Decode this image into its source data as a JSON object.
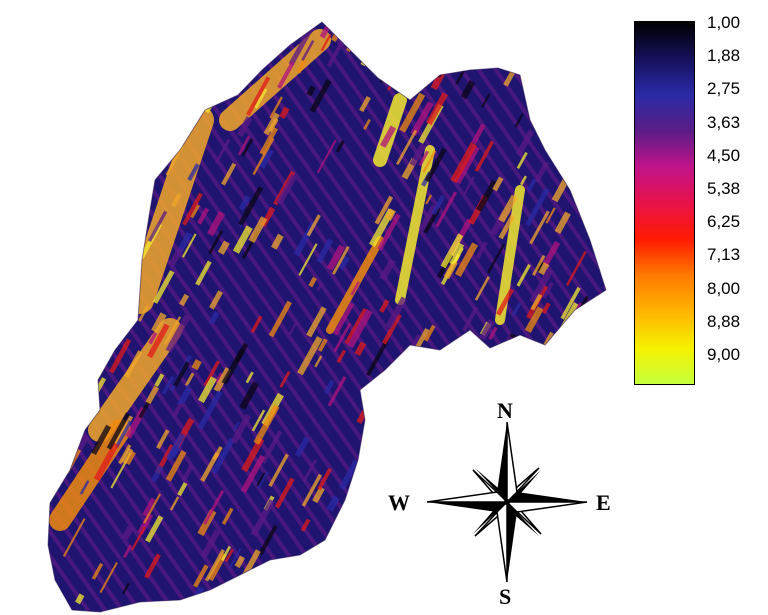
{
  "map": {
    "colors": {
      "dark": "#0b0616",
      "navy": "#1f1470",
      "blue": "#2a2aa6",
      "purple": "#5b1a86",
      "magenta": "#b0137e",
      "red": "#e01a1a",
      "orange": "#f08a10",
      "gold": "#f2a72a",
      "yellow": "#f4ea30",
      "lime": "#c7ff3a"
    }
  },
  "legend": {
    "labels": [
      "1,00",
      "1,88",
      "2,75",
      "3,63",
      "4,50",
      "5,38",
      "6,25",
      "7,13",
      "8,00",
      "8,88",
      "9,00"
    ],
    "gradient": [
      "#000000",
      "#15105a",
      "#2a2aa6",
      "#5a1d86",
      "#c0138a",
      "#e8124a",
      "#ff1a00",
      "#ff7a00",
      "#ffb400",
      "#f6f100",
      "#c4ff3c"
    ]
  },
  "compass": {
    "n": "N",
    "s": "S",
    "e": "E",
    "w": "W"
  }
}
